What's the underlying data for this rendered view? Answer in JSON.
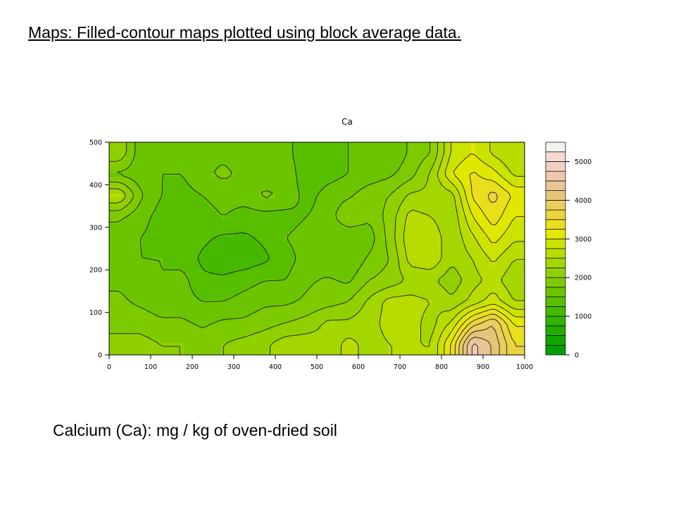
{
  "slide": {
    "title": "Maps: Filled-contour maps plotted using block average data.",
    "caption": "Calcium (Ca): mg / kg of oven-dried soil"
  },
  "chart_data": {
    "type": "heatmap",
    "title": "Ca",
    "xlabel": "",
    "ylabel": "",
    "xlim": [
      0,
      1000
    ],
    "ylim": [
      0,
      500
    ],
    "x_ticks": [
      0,
      100,
      200,
      300,
      400,
      500,
      600,
      700,
      800,
      900,
      1000
    ],
    "y_ticks": [
      0,
      100,
      200,
      300,
      400,
      500
    ],
    "grid_step": 50,
    "x_centers": [
      25,
      75,
      125,
      175,
      225,
      275,
      325,
      375,
      425,
      475,
      525,
      575,
      625,
      675,
      725,
      775,
      825,
      875,
      925,
      975
    ],
    "y_centers": [
      475,
      425,
      375,
      325,
      275,
      225,
      175,
      125,
      75,
      25
    ],
    "z": [
      [
        2200,
        1600,
        1500,
        1600,
        1700,
        1700,
        1600,
        1500,
        1600,
        1300,
        1300,
        1500,
        1700,
        1500,
        1800,
        2000,
        2800,
        3000,
        2700,
        2500
      ],
      [
        1700,
        1600,
        1500,
        1500,
        1700,
        1800,
        1700,
        1600,
        1700,
        1300,
        1400,
        1500,
        1600,
        1700,
        1900,
        2300,
        3000,
        3300,
        3100,
        2700
      ],
      [
        2500,
        1800,
        1500,
        1400,
        1500,
        1600,
        1600,
        1800,
        1700,
        1400,
        1600,
        1700,
        1900,
        2000,
        2300,
        2300,
        2400,
        3300,
        3600,
        3200
      ],
      [
        1800,
        1600,
        1400,
        1400,
        1400,
        1500,
        1400,
        1400,
        1400,
        1500,
        1600,
        2000,
        1800,
        2100,
        2600,
        2500,
        2300,
        3000,
        3400,
        3000
      ],
      [
        1600,
        1500,
        1400,
        1400,
        1300,
        1200,
        1200,
        1300,
        1500,
        1600,
        1500,
        1500,
        1600,
        2100,
        2700,
        2700,
        2300,
        2700,
        3100,
        2800
      ],
      [
        1600,
        1500,
        1500,
        1400,
        1200,
        1100,
        1100,
        1200,
        1400,
        1600,
        1500,
        1500,
        1800,
        2000,
        2600,
        2700,
        2300,
        2500,
        2800,
        2500
      ],
      [
        1700,
        1600,
        1500,
        1600,
        1300,
        1300,
        1400,
        1500,
        1500,
        1700,
        1800,
        1700,
        2000,
        2100,
        2300,
        2300,
        2100,
        2400,
        2600,
        2300
      ],
      [
        1800,
        1700,
        1600,
        1600,
        1500,
        1500,
        1600,
        1700,
        1700,
        1800,
        1900,
        2000,
        2300,
        2600,
        2600,
        2500,
        2300,
        2600,
        2900,
        2500
      ],
      [
        1900,
        1900,
        1800,
        1800,
        1700,
        1800,
        1800,
        1900,
        2000,
        2100,
        2300,
        2300,
        2400,
        2600,
        2600,
        2400,
        2800,
        3600,
        4000,
        3200
      ],
      [
        2100,
        2100,
        2000,
        2000,
        1900,
        2000,
        2100,
        2200,
        2400,
        2400,
        2300,
        2600,
        2400,
        2500,
        2500,
        2500,
        3300,
        4600,
        4200,
        3500
      ]
    ],
    "colorbar": {
      "min": 0,
      "max": 5500,
      "step": 250,
      "ticks": [
        0,
        1000,
        2000,
        3000,
        4000,
        5000
      ],
      "colors": [
        "#00a000",
        "#11a600",
        "#22ac00",
        "#33b200",
        "#45b800",
        "#57be00",
        "#6ac400",
        "#7dca00",
        "#90d000",
        "#a4d600",
        "#b8dc00",
        "#cce200",
        "#e1e800",
        "#e9df1d",
        "#ebd43f",
        "#eacd5c",
        "#e8c478",
        "#e8c596",
        "#edc8ae",
        "#f1d0c2",
        "#f5dad3",
        "#f2f2f2"
      ]
    }
  }
}
